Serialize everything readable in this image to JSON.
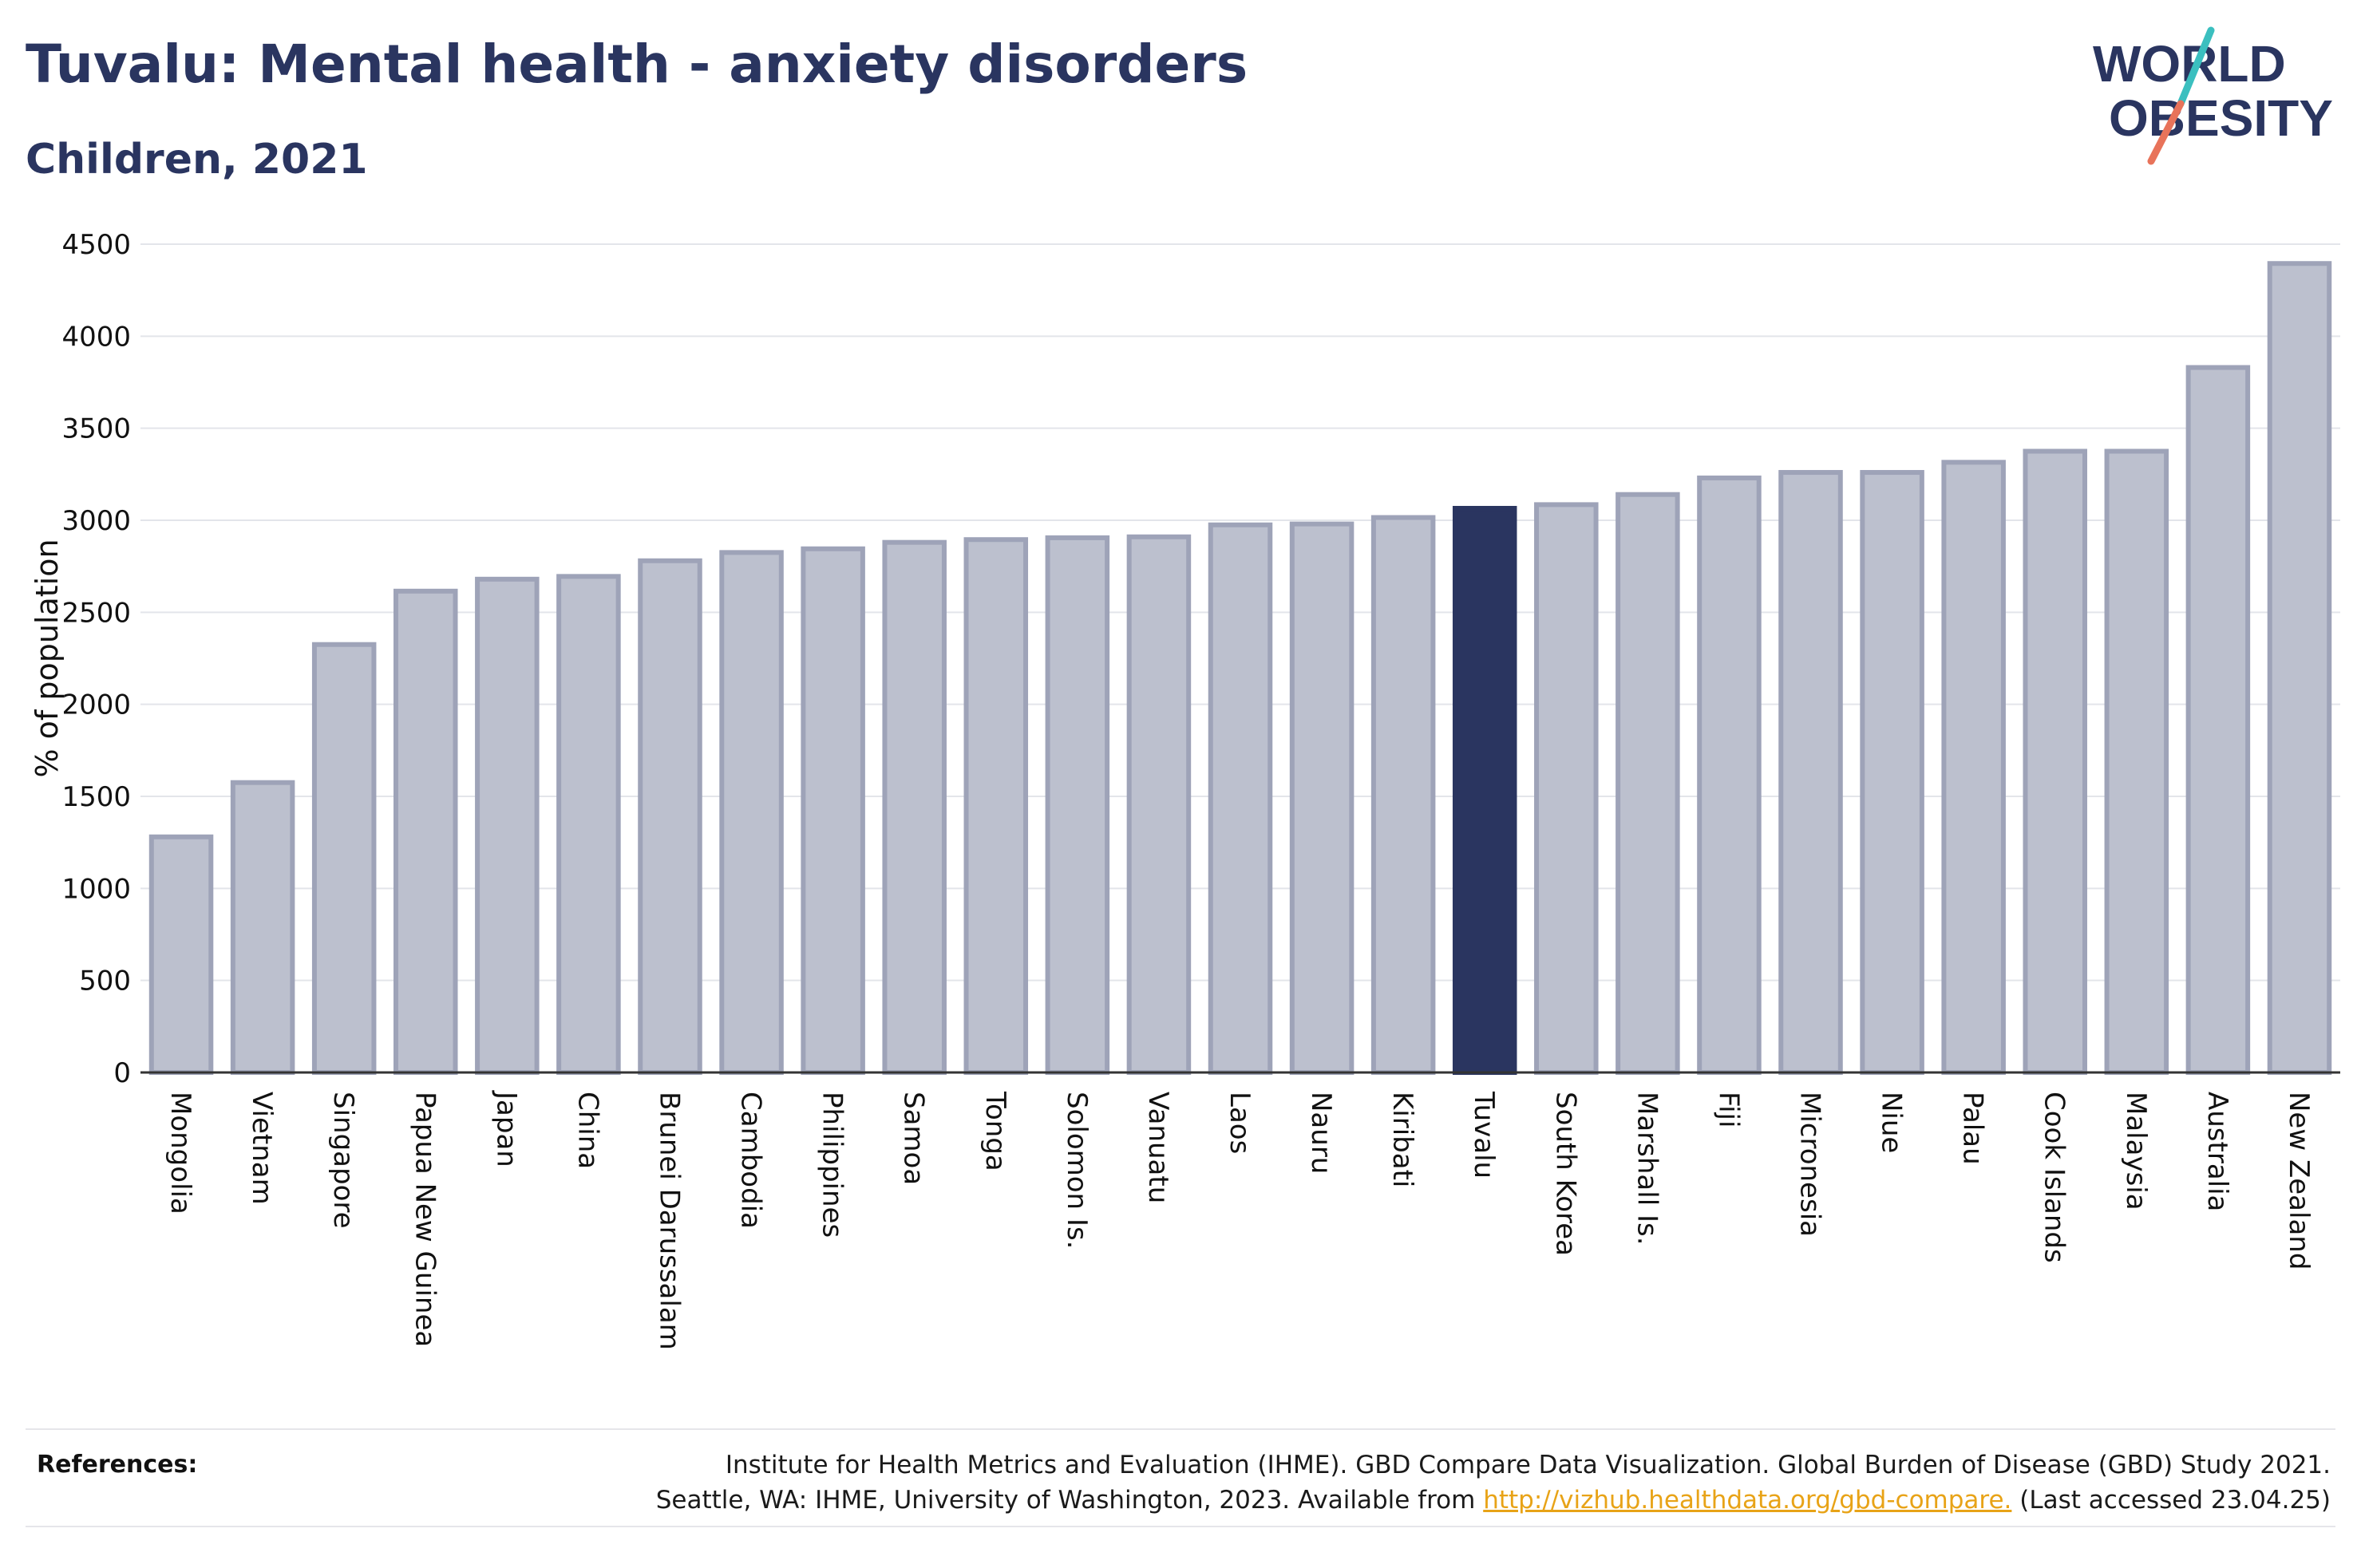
{
  "header": {
    "title": "Tuvalu: Mental health - anxiety disorders",
    "subtitle": "Children, 2021"
  },
  "logo": {
    "line1": "WORLD",
    "line2": "OBESITY"
  },
  "colors": {
    "highlight": "#2a3560",
    "bar_fill": "#bcc0ce",
    "bar_stroke": "#9ea3b8",
    "slash_teal": "#3bbfbf",
    "slash_coral": "#e8735a",
    "link": "#e8a317"
  },
  "chart_data": {
    "type": "bar",
    "ylabel": "% of population",
    "xlabel": "",
    "ylim": [
      0,
      4500
    ],
    "yticks": [
      0,
      500,
      1000,
      1500,
      2000,
      2500,
      3000,
      3500,
      4000,
      4500
    ],
    "grid": true,
    "highlight": "Tuvalu",
    "categories": [
      "Mongolia",
      "Vietnam",
      "Singapore",
      "Papua New Guinea",
      "Japan",
      "China",
      "Brunei Darussalam",
      "Cambodia",
      "Philippines",
      "Samoa",
      "Tonga",
      "Solomon Is.",
      "Vanuatu",
      "Laos",
      "Nauru",
      "Kiribati",
      "Tuvalu",
      "South Korea",
      "Marshall Is.",
      "Fiji",
      "Micronesia",
      "Niue",
      "Palau",
      "Cook Islands",
      "Malaysia",
      "Australia",
      "New Zealand"
    ],
    "values": [
      1280,
      1575,
      2325,
      2615,
      2680,
      2695,
      2780,
      2825,
      2845,
      2880,
      2895,
      2905,
      2910,
      2975,
      2980,
      3015,
      3065,
      3085,
      3140,
      3230,
      3260,
      3260,
      3315,
      3375,
      3375,
      3830,
      4395
    ]
  },
  "footer": {
    "label": "References:",
    "line1": "Institute for Health Metrics and Evaluation (IHME). GBD Compare Data Visualization. Global Burden of Disease (GBD) Study 2021.",
    "line2_pre": "Seattle, WA: IHME, University of Washington, 2023. Available from ",
    "link": "http://vizhub.healthdata.org/gbd-compare.",
    "line2_post": " (Last accessed 23.04.25)"
  }
}
